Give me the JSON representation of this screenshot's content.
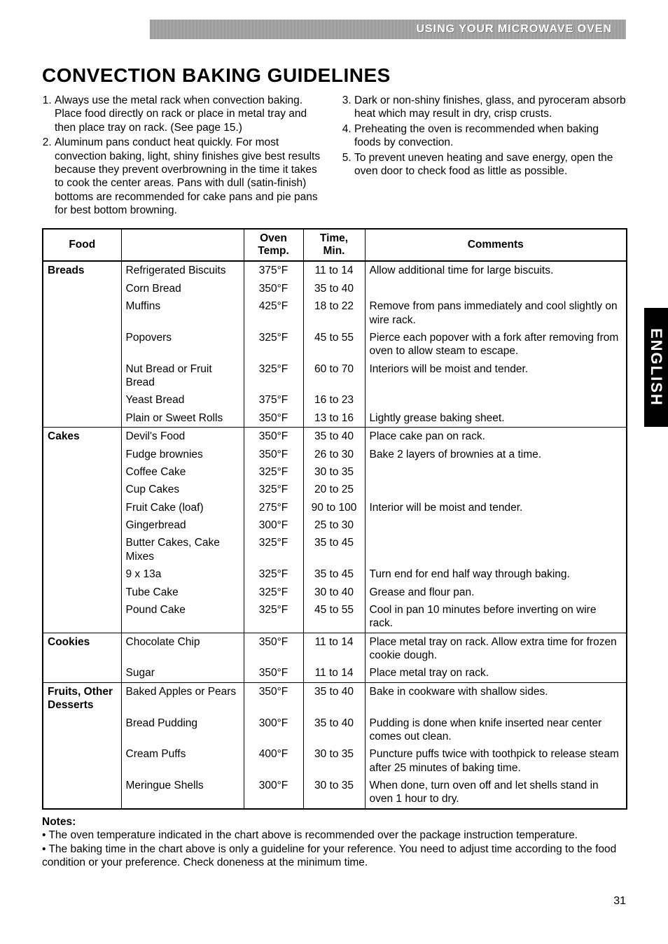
{
  "banner": {
    "text": "USING YOUR MICROWAVE OVEN"
  },
  "title": "CONVECTION BAKING GUIDELINES",
  "left_list": [
    "Always use the metal rack when convection baking. Place food directly on rack or place in metal tray and then place tray on rack. (See page 15.)",
    "Aluminum pans conduct heat quickly. For most convection baking, light, shiny finishes give best results because they prevent overbrowning in the time it takes to cook the center areas. Pans with dull (satin-finish) bottoms are recommended for cake pans and pie pans for best bottom browning."
  ],
  "right_list": [
    "Dark or non-shiny finishes, glass, and pyroceram absorb heat which may result in dry, crisp crusts.",
    "Preheating the oven is recommended when baking foods by convection.",
    "To prevent uneven heating and save energy, open the oven door to check food as little as possible."
  ],
  "table": {
    "headers": {
      "food": "Food",
      "item": "",
      "temp": "Oven Temp.",
      "time": "Time, Min.",
      "comments": "Comments"
    },
    "sections": [
      {
        "category": "Breads",
        "rows": [
          {
            "item": "Refrigerated Biscuits",
            "temp": "375°F",
            "time": "11 to 14",
            "comments": "Allow additional time for large biscuits."
          },
          {
            "item": "Corn Bread",
            "temp": "350°F",
            "time": "35 to 40",
            "comments": ""
          },
          {
            "item": "Muffins",
            "temp": "425°F",
            "time": "18 to 22",
            "comments": "Remove from pans immediately and cool slightly on wire rack."
          },
          {
            "item": "Popovers",
            "temp": "325°F",
            "time": "45 to 55",
            "comments": "Pierce each popover with a fork after removing from oven to allow steam to escape."
          },
          {
            "item": "Nut Bread or Fruit Bread",
            "temp": "325°F",
            "time": "60 to 70",
            "comments": "Interiors will be moist and tender."
          },
          {
            "item": "Yeast Bread",
            "temp": "375°F",
            "time": "16 to 23",
            "comments": ""
          },
          {
            "item": "Plain or Sweet Rolls",
            "temp": "350°F",
            "time": "13 to 16",
            "comments": "Lightly grease baking sheet."
          }
        ]
      },
      {
        "category": "Cakes",
        "rows": [
          {
            "item": "Devil's Food",
            "temp": "350°F",
            "time": "35 to 40",
            "comments": "Place cake pan on rack."
          },
          {
            "item": "Fudge brownies",
            "temp": "350°F",
            "time": "26 to 30",
            "comments": "Bake 2 layers of brownies at a time."
          },
          {
            "item": "Coffee Cake",
            "temp": "325°F",
            "time": "30 to 35",
            "comments": ""
          },
          {
            "item": "Cup Cakes",
            "temp": "325°F",
            "time": "20 to 25",
            "comments": ""
          },
          {
            "item": "Fruit Cake (loaf)",
            "temp": "275°F",
            "time": "90 to 100",
            "comments": "Interior will be moist and tender."
          },
          {
            "item": "Gingerbread",
            "temp": "300°F",
            "time": "25 to 30",
            "comments": ""
          },
          {
            "item": "Butter Cakes, Cake Mixes",
            "temp": "325°F",
            "time": "35 to 45",
            "comments": ""
          },
          {
            "item": " 9 x 13a",
            "temp": "325°F",
            "time": "35 to 45",
            "comments": "Turn end for end half way through baking."
          },
          {
            "item": "Tube Cake",
            "temp": "325°F",
            "time": "30 to 40",
            "comments": "Grease and flour pan."
          },
          {
            "item": "Pound Cake",
            "temp": "325°F",
            "time": "45 to 55",
            "comments": "Cool in pan 10 minutes before inverting on wire rack."
          }
        ]
      },
      {
        "category": "Cookies",
        "rows": [
          {
            "item": "Chocolate Chip",
            "temp": "350°F",
            "time": "11 to 14",
            "comments": "Place metal tray on rack. Allow extra time for frozen cookie dough."
          },
          {
            "item": "Sugar",
            "temp": "350°F",
            "time": "11 to 14",
            "comments": "Place metal tray on rack."
          }
        ]
      },
      {
        "category": "Fruits, Other Desserts",
        "rows": [
          {
            "item": "Baked Apples or Pears",
            "temp": "350°F",
            "time": "35 to 40",
            "comments": "Bake in cookware with shallow sides."
          },
          {
            "item": "Bread Pudding",
            "temp": "300°F",
            "time": "35 to 40",
            "comments": "Pudding is done when knife inserted near center comes out clean."
          },
          {
            "item": "Cream Puffs",
            "temp": "400°F",
            "time": "30 to 35",
            "comments": "Puncture puffs twice with toothpick to release steam after 25 minutes of baking time."
          },
          {
            "item": "Meringue Shells",
            "temp": "300°F",
            "time": "30 to 35",
            "comments": "When done, turn oven off and let shells stand in oven 1 hour to dry."
          }
        ]
      }
    ]
  },
  "notes": {
    "heading": "Notes:",
    "items": [
      "The oven temperature indicated in the chart above is recommended over the package instruction temperature.",
      "The baking time in the chart above is only a guideline for your reference. You need to adjust time according to the food condition or your preference. Check doneness at the minimum time."
    ]
  },
  "side_tab": "ENGLISH",
  "page_number": "31"
}
